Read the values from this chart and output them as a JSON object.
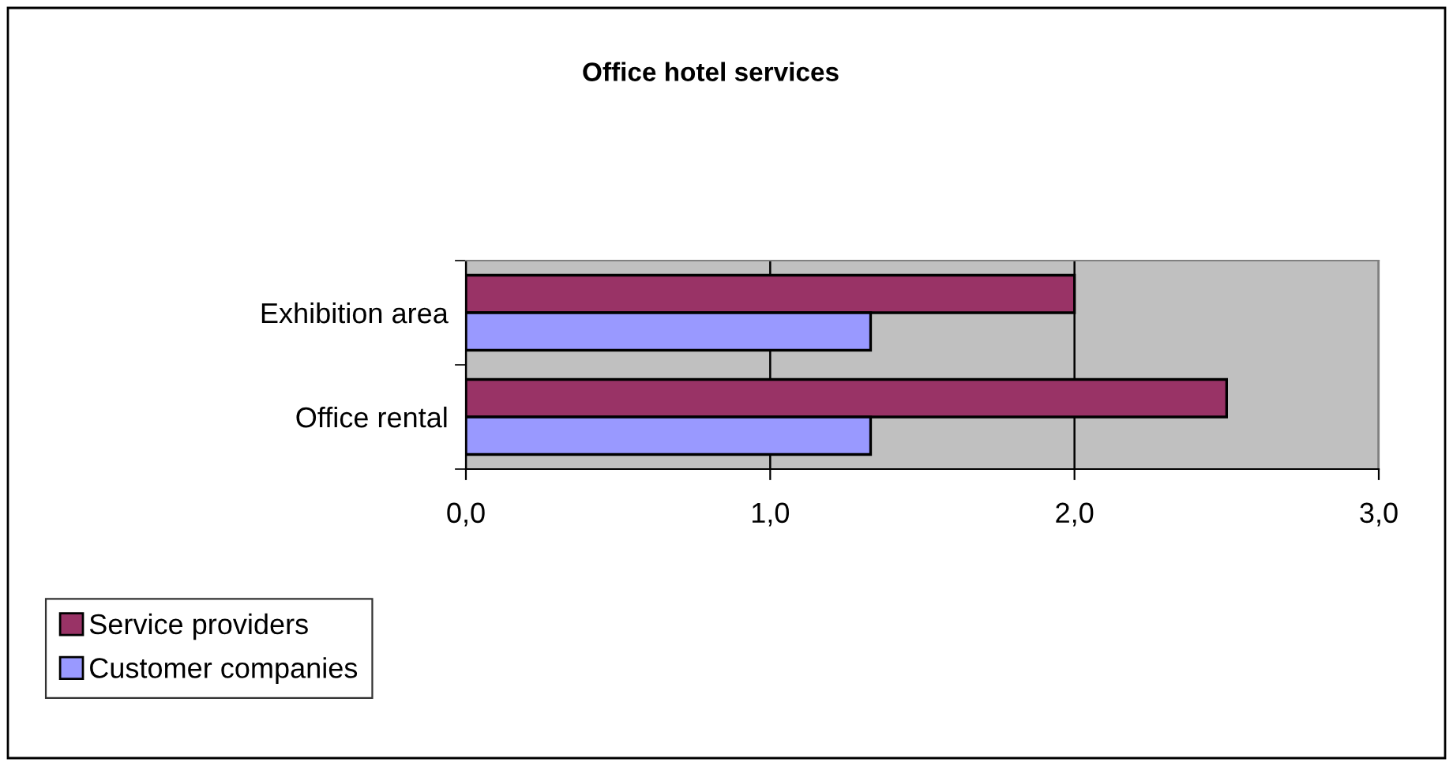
{
  "chart_data": {
    "type": "bar",
    "orientation": "horizontal",
    "title": "Office hotel services",
    "categories": [
      "Exhibition area",
      "Office rental"
    ],
    "series": [
      {
        "name": "Service providers",
        "color": "#993366",
        "values": [
          2.0,
          2.5
        ]
      },
      {
        "name": "Customer companies",
        "color": "#9999ff",
        "values": [
          1.33,
          1.33
        ]
      }
    ],
    "xlim": [
      0,
      3
    ],
    "xticks": [
      {
        "value": 0,
        "label": "0,0"
      },
      {
        "value": 1,
        "label": "1,0"
      },
      {
        "value": 2,
        "label": "2,0"
      },
      {
        "value": 3,
        "label": "3,0"
      }
    ],
    "grid": "x",
    "legend": "bottom left"
  }
}
